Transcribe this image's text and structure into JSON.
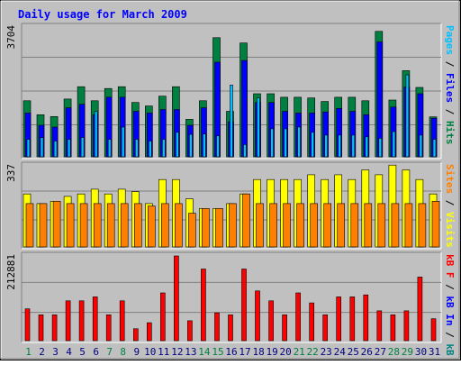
{
  "colors": {
    "frame_bg": "#C0C0C0",
    "panel_bg": "#C0C0C0",
    "title_text": "#0000FF",
    "grid": "#808080",
    "hits": "#008040",
    "files": "#0000FF",
    "pages": "#00C0FF",
    "visits": "#FFFF00",
    "sites": "#FF8000",
    "kb_in": "#FF0000",
    "kb_out": "#008080",
    "weekend_day": "#008040",
    "weekday_day": "#000080",
    "label_black": "#000000"
  },
  "chart_data": {
    "type": "bar",
    "title": "Daily usage for March 2009",
    "categories": [
      "1",
      "2",
      "3",
      "4",
      "5",
      "6",
      "7",
      "8",
      "9",
      "10",
      "11",
      "12",
      "13",
      "14",
      "15",
      "16",
      "17",
      "18",
      "19",
      "20",
      "21",
      "22",
      "23",
      "24",
      "25",
      "26",
      "27",
      "28",
      "29",
      "30",
      "31"
    ],
    "weekend_days": [
      1,
      7,
      8,
      14,
      15,
      21,
      22,
      28,
      29
    ],
    "panels": [
      {
        "id": "hits-files-pages",
        "ymax_label": "3704",
        "ymax": 3704,
        "axis_label_parts": [
          {
            "text": "Pages",
            "color_key": "pages"
          },
          {
            "text": " / ",
            "color_key": "label_black"
          },
          {
            "text": "Files",
            "color_key": "files"
          },
          {
            "text": " / ",
            "color_key": "label_black"
          },
          {
            "text": "Hits",
            "color_key": "hits"
          }
        ],
        "series": [
          {
            "name": "Hits",
            "color_key": "hits",
            "values": [
              1600,
              1200,
              1150,
              1650,
              2000,
              1600,
              1950,
              2000,
              1550,
              1450,
              1730,
              2000,
              1070,
              1600,
              3400,
              1300,
              3250,
              1800,
              1800,
              1700,
              1700,
              1680,
              1580,
              1700,
              1700,
              1600,
              3580,
              1620,
              2460,
              1980,
              1140
            ]
          },
          {
            "name": "Files",
            "color_key": "files",
            "values": [
              1250,
              900,
              850,
              1400,
              1500,
              1200,
              1700,
              1700,
              1300,
              1250,
              1350,
              1350,
              900,
              1400,
              2700,
              1000,
              2750,
              1550,
              1550,
              1300,
              1250,
              1250,
              1280,
              1380,
              1300,
              1200,
              3280,
              1420,
              1990,
              1800,
              1100
            ]
          },
          {
            "name": "Pages",
            "color_key": "pages",
            "values": [
              500,
              550,
              450,
              500,
              550,
              1300,
              500,
              850,
              500,
              450,
              500,
              700,
              640,
              650,
              600,
              2050,
              350,
              1680,
              800,
              800,
              850,
              700,
              620,
              620,
              620,
              570,
              530,
              720,
              2340,
              620,
              500
            ]
          }
        ]
      },
      {
        "id": "visits-sites",
        "ymax_label": "337",
        "ymax": 337,
        "axis_label_parts": [
          {
            "text": "Sites",
            "color_key": "sites"
          },
          {
            "text": " / ",
            "color_key": "label_black"
          },
          {
            "text": "Visits",
            "color_key": "visits"
          }
        ],
        "series": [
          {
            "name": "Visits",
            "color_key": "visits",
            "values": [
              220,
              180,
              190,
              210,
              220,
              240,
              220,
              240,
              230,
              180,
              280,
              280,
              200,
              160,
              160,
              180,
              220,
              280,
              280,
              280,
              280,
              300,
              280,
              300,
              280,
              320,
              300,
              340,
              320,
              280,
              220
            ]
          },
          {
            "name": "Sites",
            "color_key": "sites",
            "values": [
              180,
              180,
              190,
              180,
              180,
              180,
              180,
              180,
              180,
              170,
              180,
              180,
              140,
              160,
              160,
              180,
              220,
              180,
              180,
              180,
              180,
              180,
              180,
              180,
              180,
              180,
              180,
              180,
              180,
              180,
              190
            ]
          }
        ]
      },
      {
        "id": "kb",
        "ymax_label": "212881",
        "ymax": 212881,
        "axis_label_parts": [
          {
            "text": "kB F",
            "color_key": "kb_in"
          },
          {
            "text": " / ",
            "color_key": "label_black"
          },
          {
            "text": "kB In",
            "color_key": "files"
          },
          {
            "text": " / ",
            "color_key": "label_black"
          },
          {
            "text": "kB Out",
            "color_key": "kb_out"
          }
        ],
        "series": [
          {
            "name": "kB F",
            "color_key": "kb_in",
            "values": [
              80000,
              65000,
              65000,
              100000,
              100000,
              110000,
              65000,
              100000,
              30000,
              45000,
              120000,
              212881,
              50000,
              180000,
              70000,
              65000,
              180000,
              125000,
              100000,
              65000,
              120000,
              95000,
              65000,
              110000,
              110000,
              115000,
              75000,
              65000,
              75000,
              160000,
              55000
            ]
          }
        ]
      }
    ]
  }
}
